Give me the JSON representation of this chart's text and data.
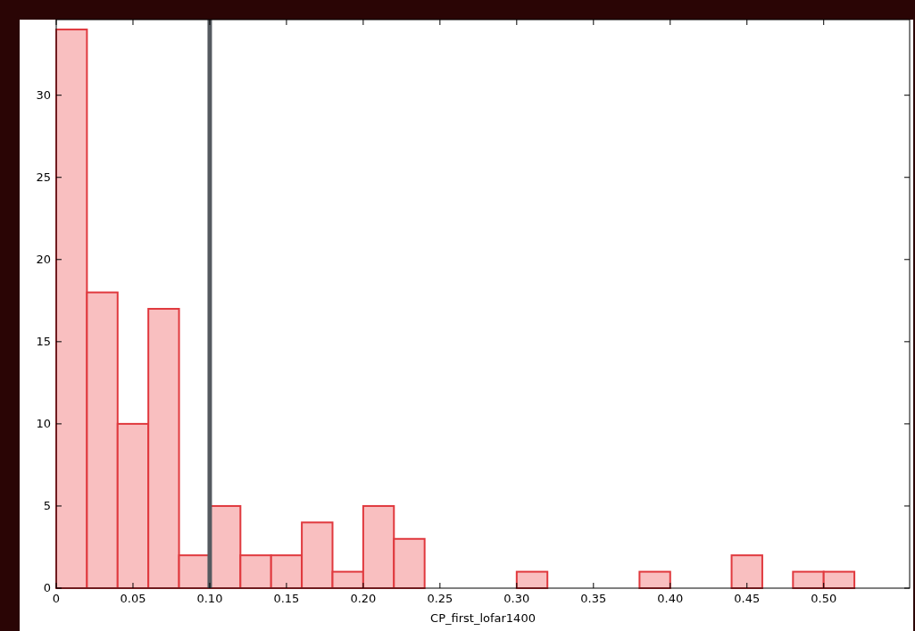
{
  "chart_data": {
    "type": "histogram",
    "xlabel": "CP_first_lofar1400",
    "bins": [
      0,
      0.02,
      0.04,
      0.06,
      0.08,
      0.1,
      0.12,
      0.14,
      0.16,
      0.18,
      0.2,
      0.22,
      0.24,
      0.26,
      0.28,
      0.3,
      0.32,
      0.34,
      0.36,
      0.38,
      0.4,
      0.42,
      0.44,
      0.46,
      0.48,
      0.5,
      0.52
    ],
    "values": [
      34,
      18,
      10,
      17,
      2,
      5,
      2,
      2,
      4,
      1,
      5,
      3,
      0,
      0,
      0,
      1,
      0,
      0,
      0,
      1,
      0,
      0,
      2,
      0,
      1,
      1
    ],
    "color": "#f9bfc0",
    "xlim": [
      0,
      0.556
    ],
    "ylim": [
      0,
      34.6
    ],
    "xticks": [
      {
        "value": 0,
        "label": "0"
      },
      {
        "value": 0.05,
        "label": "0.05"
      },
      {
        "value": 0.1,
        "label": "0.10"
      },
      {
        "value": 0.15,
        "label": "0.15"
      },
      {
        "value": 0.2,
        "label": "0.20"
      },
      {
        "value": 0.25,
        "label": "0.25"
      },
      {
        "value": 0.3,
        "label": "0.30"
      },
      {
        "value": 0.35,
        "label": "0.35"
      },
      {
        "value": 0.4,
        "label": "0.40"
      },
      {
        "value": 0.45,
        "label": "0.45"
      },
      {
        "value": 0.5,
        "label": "0.50"
      }
    ],
    "yticks": [
      0,
      5,
      10,
      15,
      20,
      25,
      30
    ],
    "ref_lines": [
      {
        "axis": "x",
        "value": 0.1,
        "color": "#555a60"
      }
    ],
    "grid": false
  }
}
